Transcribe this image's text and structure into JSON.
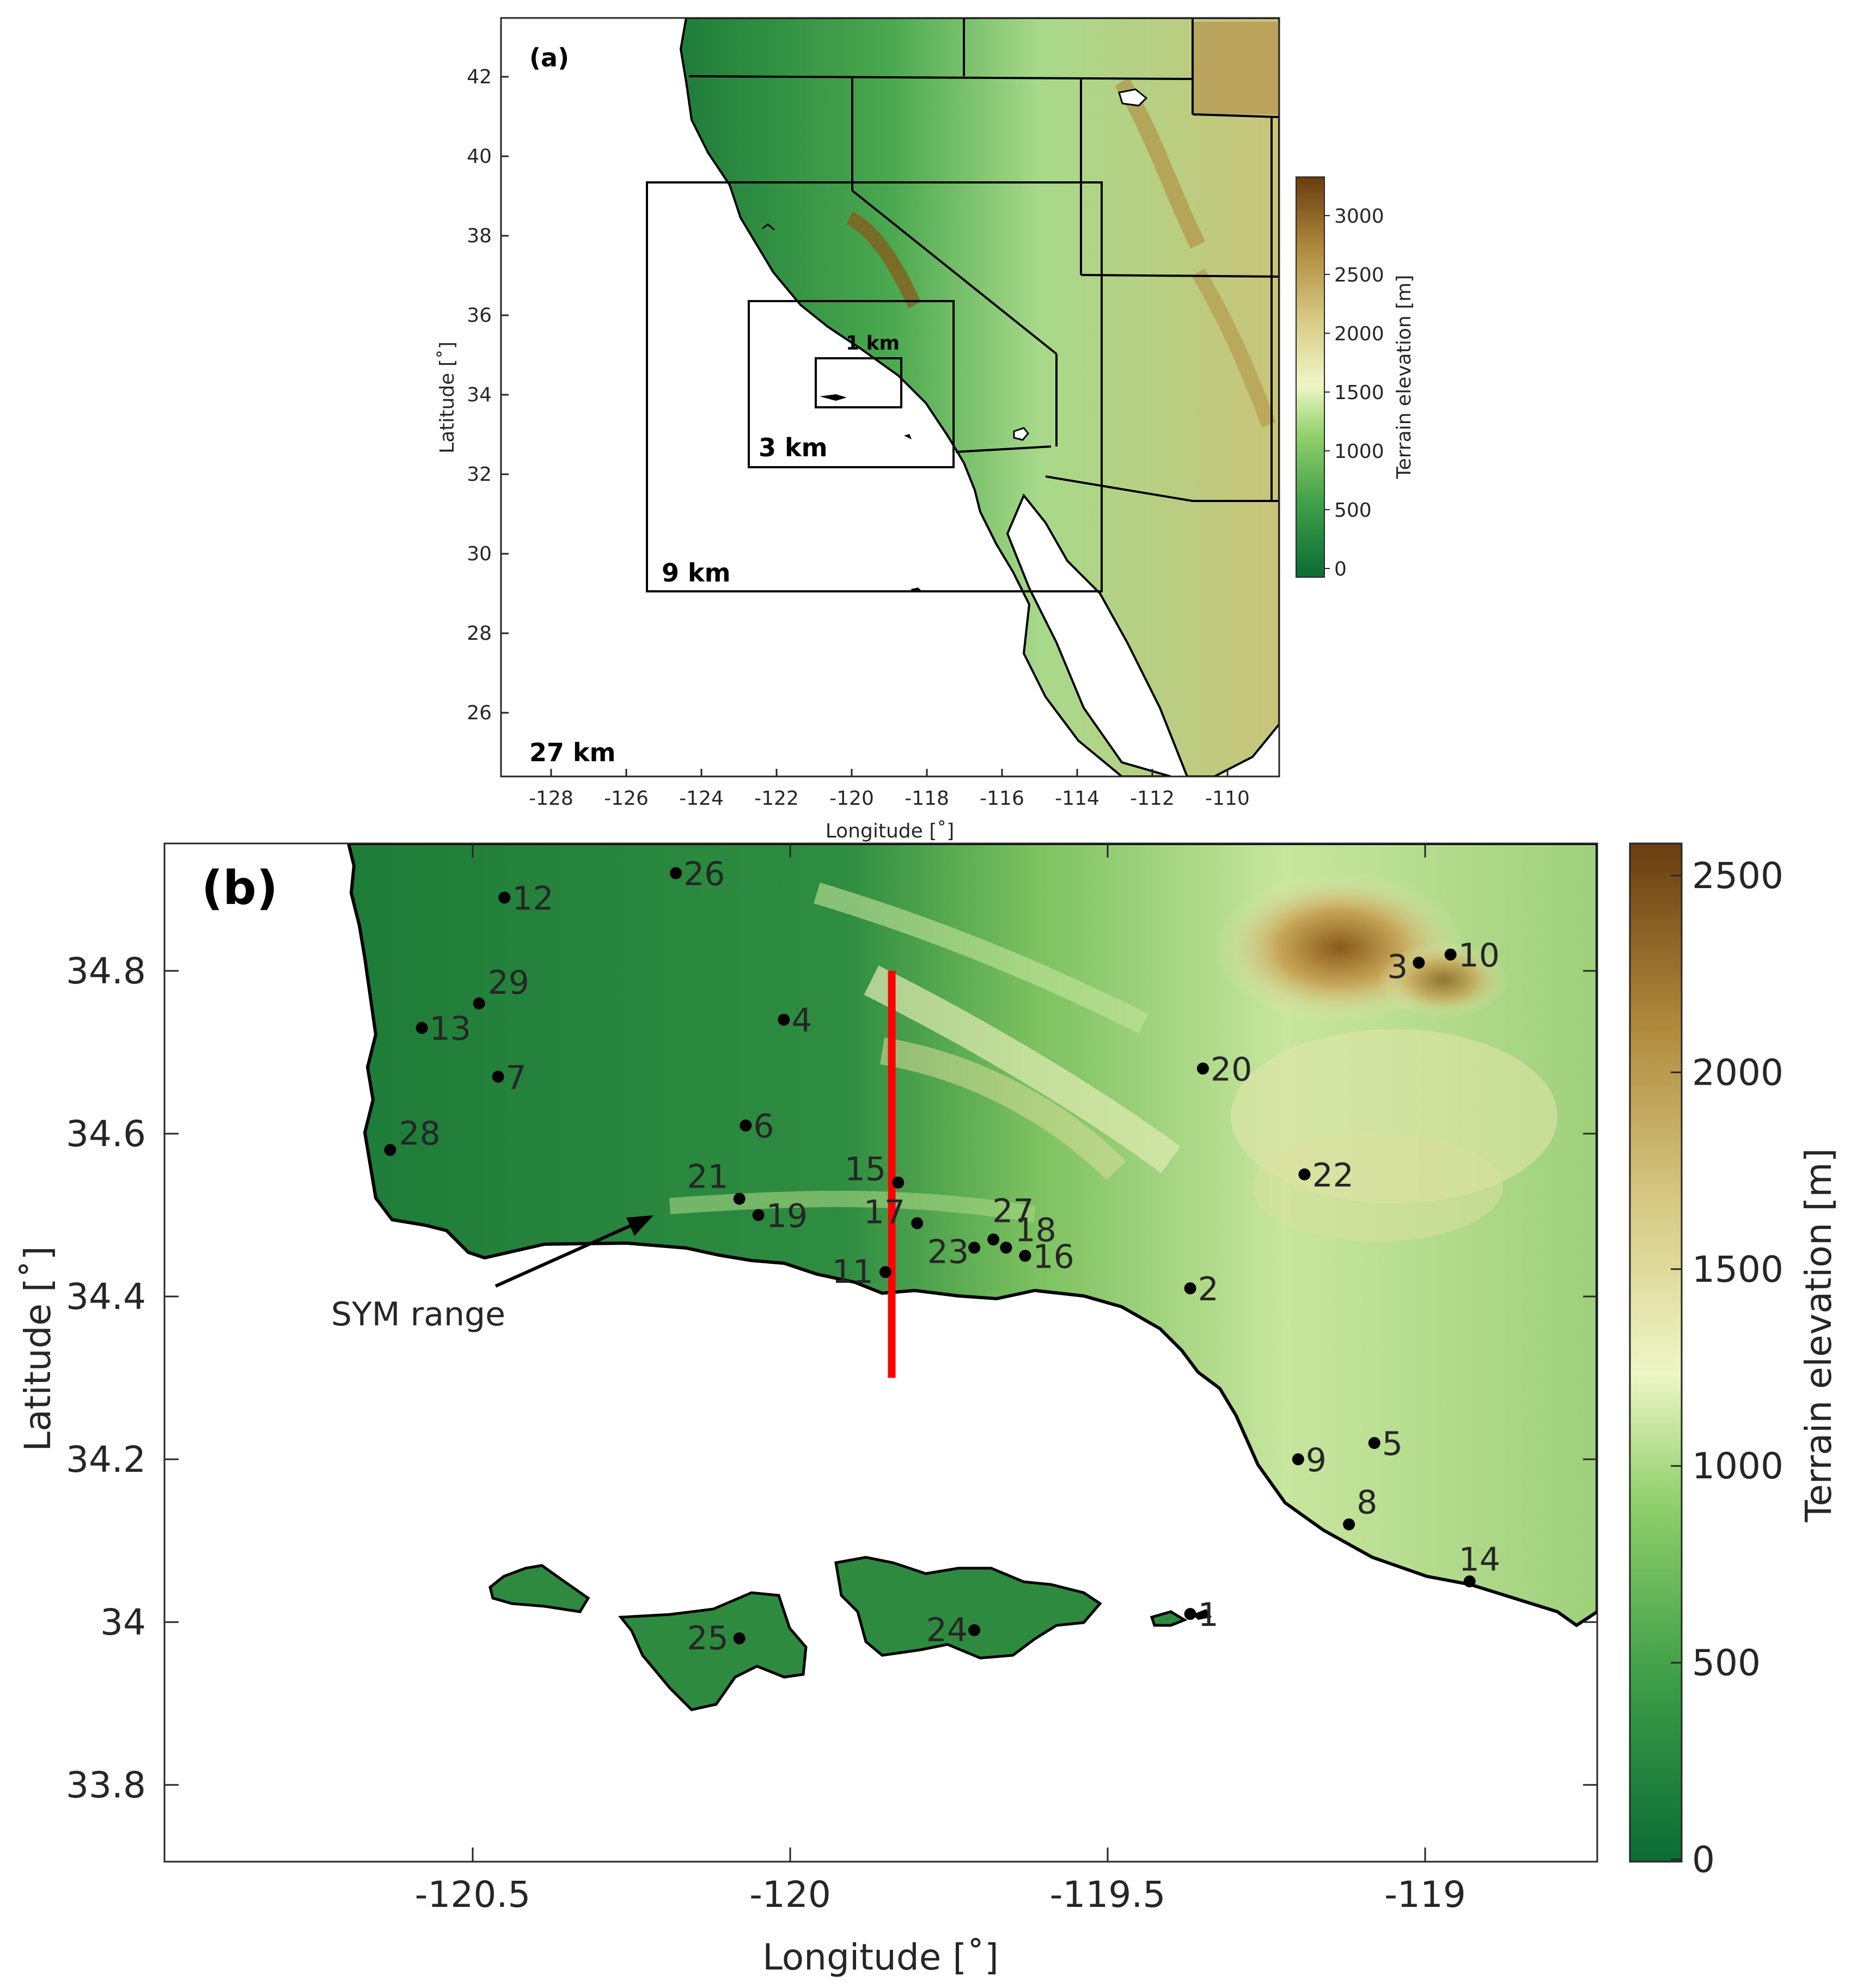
{
  "panel_a": {
    "label": "(a)",
    "x_axis_title": "Longitude [˚]",
    "y_axis_title": "Latitude [˚]",
    "x_ticks": [
      "-128",
      "-126",
      "-124",
      "-122",
      "-120",
      "-118",
      "-116",
      "-114",
      "-112",
      "-110"
    ],
    "y_ticks": [
      "42",
      "40",
      "38",
      "36",
      "34",
      "32",
      "30",
      "28",
      "26"
    ],
    "domains": [
      {
        "label": "27 km"
      },
      {
        "label": "9 km"
      },
      {
        "label": "3 km"
      },
      {
        "label": "1 km"
      }
    ],
    "colorbar": {
      "title": "Terrain elevation [m]",
      "ticks": [
        "3000",
        "2500",
        "2000",
        "1500",
        "1000",
        "500",
        "0"
      ]
    }
  },
  "panel_b": {
    "label": "(b)",
    "x_axis_title": "Longitude [˚]",
    "y_axis_title": "Latitude [˚]",
    "x_ticks": [
      "-120.5",
      "-120",
      "-119.5",
      "-119"
    ],
    "y_ticks": [
      "34.8",
      "34.6",
      "34.4",
      "34.2",
      "34",
      "33.8"
    ],
    "annotation": "SYM range",
    "colorbar": {
      "title": "Terrain elevation [m]",
      "ticks": [
        "2500",
        "2000",
        "1500",
        "1000",
        "500",
        "0"
      ]
    },
    "stations": [
      {
        "id": "1",
        "lon": -119.37,
        "lat": 34.01
      },
      {
        "id": "2",
        "lon": -119.37,
        "lat": 34.41
      },
      {
        "id": "3",
        "lon": -119.01,
        "lat": 34.81
      },
      {
        "id": "4",
        "lon": -120.01,
        "lat": 34.74
      },
      {
        "id": "5",
        "lon": -119.08,
        "lat": 34.22
      },
      {
        "id": "6",
        "lon": -120.07,
        "lat": 34.61
      },
      {
        "id": "7",
        "lon": -120.46,
        "lat": 34.67
      },
      {
        "id": "8",
        "lon": -119.12,
        "lat": 34.12
      },
      {
        "id": "9",
        "lon": -119.2,
        "lat": 34.2
      },
      {
        "id": "10",
        "lon": -118.96,
        "lat": 34.82
      },
      {
        "id": "11",
        "lon": -119.85,
        "lat": 34.43
      },
      {
        "id": "12",
        "lon": -120.45,
        "lat": 34.89
      },
      {
        "id": "13",
        "lon": -120.58,
        "lat": 34.73
      },
      {
        "id": "14",
        "lon": -118.93,
        "lat": 34.05
      },
      {
        "id": "15",
        "lon": -119.83,
        "lat": 34.54
      },
      {
        "id": "16",
        "lon": -119.63,
        "lat": 34.45
      },
      {
        "id": "17",
        "lon": -119.8,
        "lat": 34.49
      },
      {
        "id": "18",
        "lon": -119.66,
        "lat": 34.46
      },
      {
        "id": "19",
        "lon": -120.05,
        "lat": 34.5
      },
      {
        "id": "20",
        "lon": -119.35,
        "lat": 34.68
      },
      {
        "id": "21",
        "lon": -120.08,
        "lat": 34.52
      },
      {
        "id": "22",
        "lon": -119.19,
        "lat": 34.55
      },
      {
        "id": "23",
        "lon": -119.71,
        "lat": 34.46
      },
      {
        "id": "24",
        "lon": -119.71,
        "lat": 33.99
      },
      {
        "id": "25",
        "lon": -120.08,
        "lat": 33.98
      },
      {
        "id": "26",
        "lon": -120.18,
        "lat": 34.92
      },
      {
        "id": "27",
        "lon": -119.68,
        "lat": 34.47
      },
      {
        "id": "28",
        "lon": -120.63,
        "lat": 34.58
      },
      {
        "id": "29",
        "lon": -120.49,
        "lat": 34.76
      }
    ],
    "transect": {
      "lon": -119.84,
      "lat_start": 34.3,
      "lat_end": 34.8,
      "color": "#ff0000"
    }
  },
  "colors": {
    "low": "#0b6b35",
    "mid": "#f4f7c8",
    "high": "#6a3c10",
    "ocean": "#ffffff"
  }
}
